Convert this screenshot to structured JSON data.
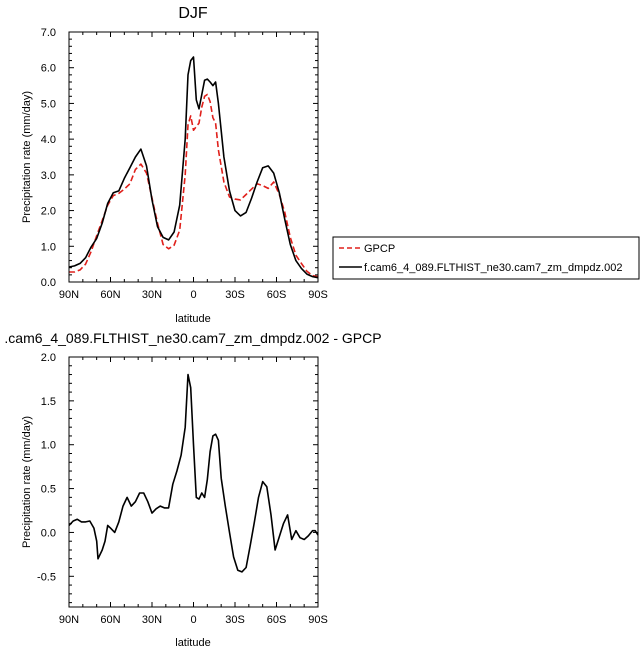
{
  "chart_data": [
    {
      "type": "line",
      "title": "DJF",
      "xlabel": "latitude",
      "ylabel": "Precipitation rate (mm/day)",
      "xlim": [
        90,
        -90
      ],
      "ylim": [
        0,
        7
      ],
      "xticks": [
        90,
        60,
        30,
        0,
        -30,
        -60,
        -90
      ],
      "xtick_labels": [
        "90N",
        "60N",
        "30N",
        "0",
        "30S",
        "60S",
        "90S"
      ],
      "yticks": [
        0,
        1,
        2,
        3,
        4,
        5,
        6,
        7
      ],
      "ytick_labels": [
        "0.0",
        "1.0",
        "2.0",
        "3.0",
        "4.0",
        "5.0",
        "6.0",
        "7.0"
      ],
      "legend_position": "right",
      "series": [
        {
          "name": "GPCP",
          "color": "#e0201b",
          "dash": "dashed",
          "x": [
            90,
            86,
            82,
            78,
            74,
            70,
            66,
            62,
            58,
            54,
            50,
            46,
            42,
            38,
            34,
            30,
            26,
            22,
            18,
            14,
            10,
            6,
            4,
            2,
            0,
            -2,
            -4,
            -6,
            -8,
            -10,
            -12,
            -14,
            -16,
            -18,
            -22,
            -26,
            -30,
            -34,
            -38,
            -42,
            -46,
            -50,
            -54,
            -58,
            -62,
            -66,
            -70,
            -74,
            -78,
            -82,
            -86,
            -90
          ],
          "y": [
            0.28,
            0.28,
            0.34,
            0.5,
            0.85,
            1.3,
            1.72,
            2.15,
            2.42,
            2.48,
            2.6,
            2.75,
            3.15,
            3.3,
            3.05,
            2.35,
            1.65,
            1.05,
            0.93,
            1.03,
            1.45,
            3.0,
            4.4,
            4.65,
            4.25,
            4.35,
            4.45,
            4.9,
            5.2,
            5.25,
            5.05,
            4.6,
            4.45,
            3.7,
            2.8,
            2.38,
            2.32,
            2.3,
            2.45,
            2.6,
            2.75,
            2.7,
            2.62,
            2.8,
            2.45,
            1.95,
            1.25,
            0.75,
            0.52,
            0.3,
            0.18,
            0.15
          ]
        },
        {
          "name": "f.cam6_4_089.FLTHIST_ne30.cam7_zm_dmpdz.002",
          "color": "#000000",
          "dash": "solid",
          "x": [
            90,
            86,
            82,
            78,
            74,
            70,
            66,
            62,
            58,
            54,
            50,
            46,
            42,
            38,
            34,
            30,
            26,
            22,
            18,
            14,
            10,
            6,
            4,
            2,
            0,
            -2,
            -4,
            -6,
            -8,
            -10,
            -12,
            -14,
            -16,
            -18,
            -22,
            -26,
            -30,
            -34,
            -38,
            -42,
            -46,
            -50,
            -54,
            -58,
            -62,
            -66,
            -70,
            -74,
            -78,
            -82,
            -86,
            -90
          ],
          "y": [
            0.42,
            0.45,
            0.52,
            0.68,
            0.98,
            1.22,
            1.65,
            2.2,
            2.5,
            2.55,
            2.9,
            3.2,
            3.5,
            3.72,
            3.25,
            2.3,
            1.55,
            1.25,
            1.18,
            1.4,
            2.15,
            4.0,
            5.8,
            6.2,
            6.3,
            5.1,
            4.85,
            5.25,
            5.65,
            5.68,
            5.6,
            5.5,
            5.6,
            5.0,
            3.5,
            2.55,
            2.0,
            1.85,
            1.95,
            2.35,
            2.8,
            3.2,
            3.25,
            3.05,
            2.5,
            1.75,
            1.05,
            0.6,
            0.38,
            0.22,
            0.15,
            0.12
          ]
        }
      ]
    },
    {
      "type": "line",
      "title": ".cam6_4_089.FLTHIST_ne30.cam7_zm_dmpdz.002 - GPCP",
      "xlabel": "latitude",
      "ylabel": "Precipitation rate (mm/day)",
      "xlim": [
        90,
        -90
      ],
      "ylim": [
        -0.85,
        2.0
      ],
      "xticks": [
        90,
        60,
        30,
        0,
        -30,
        -60,
        -90
      ],
      "xtick_labels": [
        "90N",
        "60N",
        "30N",
        "0",
        "30S",
        "60S",
        "90S"
      ],
      "yticks": [
        -0.5,
        0,
        0.5,
        1.0,
        1.5,
        2.0
      ],
      "ytick_labels": [
        "-0.5",
        "0.0",
        "0.5",
        "1.0",
        "1.5",
        "2.0"
      ],
      "series": [
        {
          "color": "#000000",
          "dash": "solid",
          "x": [
            90,
            87,
            84,
            81,
            78,
            75,
            72,
            70,
            69,
            66,
            64,
            62,
            60,
            57,
            54,
            51,
            48,
            45,
            42,
            39,
            36,
            33,
            30,
            27,
            24,
            21,
            18,
            15,
            12,
            9,
            6,
            4,
            2,
            0,
            -2,
            -4,
            -6,
            -8,
            -10,
            -12,
            -14,
            -16,
            -18,
            -20,
            -23,
            -26,
            -29,
            -32,
            -35,
            -38,
            -41,
            -44,
            -47,
            -50,
            -53,
            -56,
            -59,
            -62,
            -65,
            -68,
            -71,
            -74,
            -77,
            -80,
            -83,
            -86,
            -88,
            -90
          ],
          "y": [
            0.08,
            0.13,
            0.15,
            0.12,
            0.12,
            0.13,
            0.05,
            -0.1,
            -0.3,
            -0.2,
            -0.1,
            0.08,
            0.05,
            0.0,
            0.12,
            0.3,
            0.4,
            0.3,
            0.35,
            0.45,
            0.45,
            0.35,
            0.22,
            0.27,
            0.3,
            0.28,
            0.28,
            0.55,
            0.7,
            0.88,
            1.2,
            1.8,
            1.65,
            1.0,
            0.4,
            0.38,
            0.45,
            0.4,
            0.6,
            0.92,
            1.1,
            1.12,
            1.05,
            0.62,
            0.3,
            0.0,
            -0.28,
            -0.43,
            -0.45,
            -0.4,
            -0.15,
            0.12,
            0.4,
            0.58,
            0.52,
            0.2,
            -0.2,
            -0.05,
            0.1,
            0.2,
            -0.08,
            0.02,
            -0.06,
            -0.08,
            -0.04,
            0.02,
            0.02,
            -0.03
          ]
        }
      ]
    }
  ]
}
